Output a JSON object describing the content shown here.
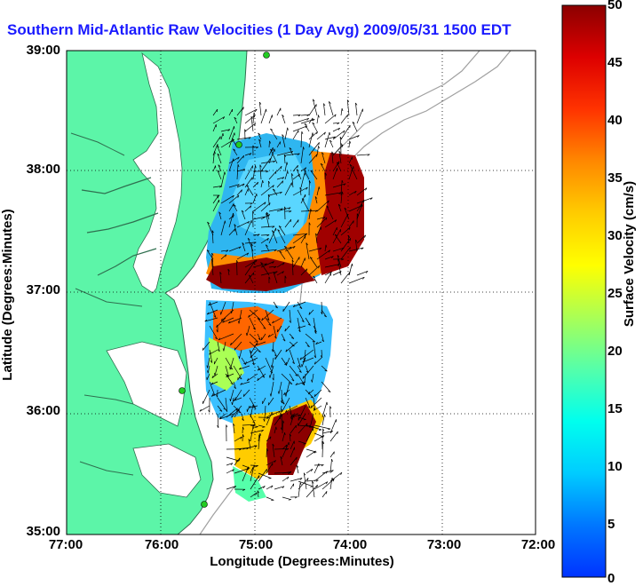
{
  "title": "Southern Mid-Atlantic Raw Velocities (1 Day Avg) 2009/05/31 1500 EDT",
  "ylabel": "Latitude (Degrees:Minutes)",
  "xlabel": "Longitude (Degrees:Minutes)",
  "colorbar_label": "Surface Velocity (cm/s)",
  "y_ticks": [
    "39:00",
    "38:00",
    "37:00",
    "36:00",
    "35:00"
  ],
  "x_ticks": [
    "77:00",
    "76:00",
    "75:00",
    "74:00",
    "73:00",
    "72:00"
  ],
  "colorbar_ticks": [
    "50",
    "45",
    "40",
    "35",
    "30",
    "25",
    "20",
    "15",
    "10",
    "5",
    "0"
  ],
  "colors": {
    "land": "#5cf5a8",
    "coast": "#2f6f4f",
    "bathymetry": "#a0a0a0",
    "title": "#1a1aff",
    "arrows": "#000000",
    "stations": "#22cc22"
  },
  "colorbar": {
    "min": 0,
    "max": 50,
    "colors": [
      "#0033ff",
      "#0077ff",
      "#00ccff",
      "#00ffee",
      "#55ffaa",
      "#aaff55",
      "#ffff00",
      "#ffcc00",
      "#ff8800",
      "#ff3300",
      "#dd0000",
      "#8b0000"
    ]
  },
  "map": {
    "lon_range": [
      -77,
      -72
    ],
    "lat_range": [
      35,
      39
    ],
    "grid": "dotted"
  }
}
